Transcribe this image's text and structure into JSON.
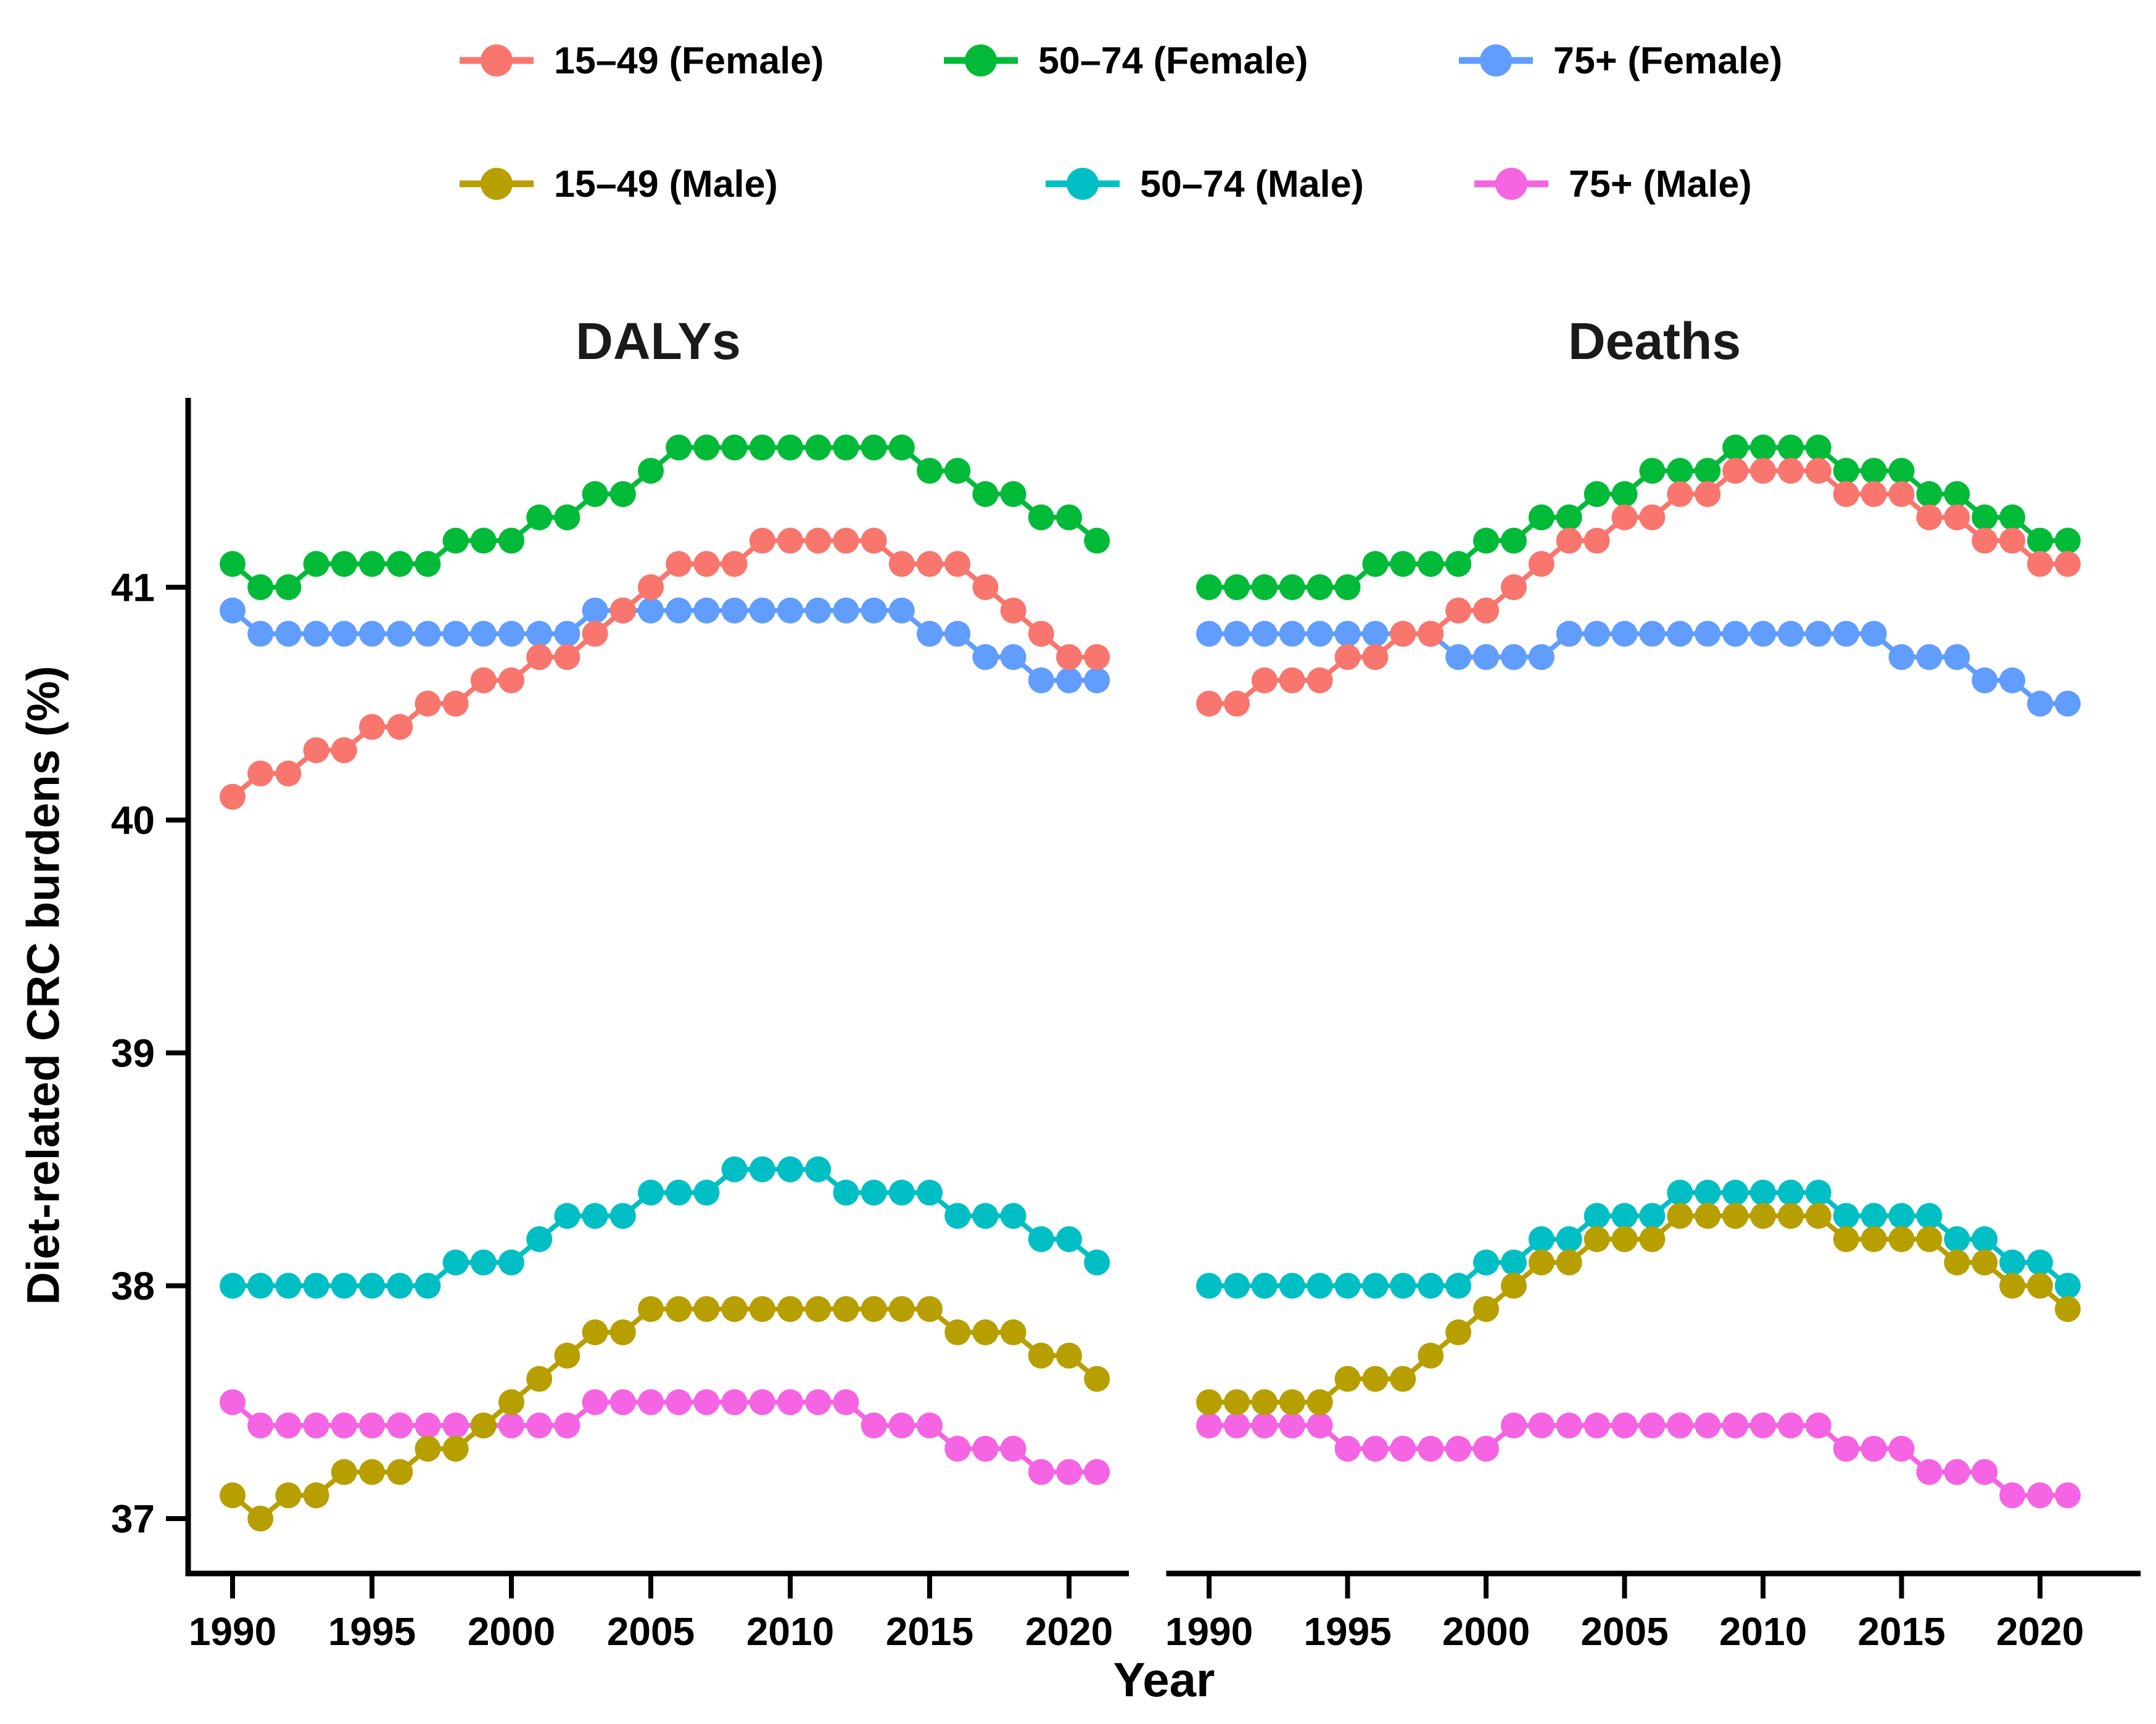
{
  "figure": {
    "background": "#ffffff",
    "text_color": "#000000"
  },
  "legend": {
    "items": [
      {
        "label": "15–49 (Female)",
        "color": "#F8766D"
      },
      {
        "label": "50–74 (Female)",
        "color": "#00BA38"
      },
      {
        "label": "75+ (Female)",
        "color": "#619CFF"
      },
      {
        "label": "15–49 (Male)",
        "color": "#B79F00"
      },
      {
        "label": "50–74 (Male)",
        "color": "#00BFC4"
      },
      {
        "label": "75+ (Male)",
        "color": "#F564E3"
      }
    ]
  },
  "chart_data": {
    "type": "line",
    "title": "",
    "xlabel": "Year",
    "ylabel": "Diet-related CRC burdens (%)",
    "x": [
      1990,
      1991,
      1992,
      1993,
      1994,
      1995,
      1996,
      1997,
      1998,
      1999,
      2000,
      2001,
      2002,
      2003,
      2004,
      2005,
      2006,
      2007,
      2008,
      2009,
      2010,
      2011,
      2012,
      2013,
      2014,
      2015,
      2016,
      2017,
      2018,
      2019,
      2020,
      2021
    ],
    "x_ticks": [
      1990,
      1995,
      2000,
      2005,
      2010,
      2015,
      2020
    ],
    "y_ticks": [
      37,
      38,
      39,
      40,
      41
    ],
    "ylim": [
      36.74,
      41.81
    ],
    "xlim": [
      1988.4,
      2022.3
    ],
    "grid": false,
    "legend_position": "top",
    "marker": "point",
    "panels": [
      {
        "title": "DALYs",
        "series": [
          {
            "name": "15–49 (Female)",
            "color": "#F8766D",
            "values": [
              40.1,
              40.2,
              40.2,
              40.3,
              40.3,
              40.4,
              40.4,
              40.5,
              40.5,
              40.6,
              40.6,
              40.7,
              40.7,
              40.8,
              40.9,
              41.0,
              41.1,
              41.1,
              41.1,
              41.2,
              41.2,
              41.2,
              41.2,
              41.2,
              41.1,
              41.1,
              41.1,
              41.0,
              40.9,
              40.8,
              40.7,
              40.7
            ]
          },
          {
            "name": "50–74 (Female)",
            "color": "#00BA38",
            "values": [
              41.1,
              41.0,
              41.0,
              41.1,
              41.1,
              41.1,
              41.1,
              41.1,
              41.2,
              41.2,
              41.2,
              41.3,
              41.3,
              41.4,
              41.4,
              41.5,
              41.6,
              41.6,
              41.6,
              41.6,
              41.6,
              41.6,
              41.6,
              41.6,
              41.6,
              41.5,
              41.5,
              41.4,
              41.4,
              41.3,
              41.3,
              41.2
            ]
          },
          {
            "name": "75+ (Female)",
            "color": "#619CFF",
            "values": [
              40.9,
              40.8,
              40.8,
              40.8,
              40.8,
              40.8,
              40.8,
              40.8,
              40.8,
              40.8,
              40.8,
              40.8,
              40.8,
              40.9,
              40.9,
              40.9,
              40.9,
              40.9,
              40.9,
              40.9,
              40.9,
              40.9,
              40.9,
              40.9,
              40.9,
              40.8,
              40.8,
              40.7,
              40.7,
              40.6,
              40.6,
              40.6
            ]
          },
          {
            "name": "15–49 (Male)",
            "color": "#B79F00",
            "values": [
              37.1,
              37.0,
              37.1,
              37.1,
              37.2,
              37.2,
              37.2,
              37.3,
              37.3,
              37.4,
              37.5,
              37.6,
              37.7,
              37.8,
              37.8,
              37.9,
              37.9,
              37.9,
              37.9,
              37.9,
              37.9,
              37.9,
              37.9,
              37.9,
              37.9,
              37.9,
              37.8,
              37.8,
              37.8,
              37.7,
              37.7,
              37.6
            ]
          },
          {
            "name": "50–74 (Male)",
            "color": "#00BFC4",
            "values": [
              38.0,
              38.0,
              38.0,
              38.0,
              38.0,
              38.0,
              38.0,
              38.0,
              38.1,
              38.1,
              38.1,
              38.2,
              38.3,
              38.3,
              38.3,
              38.4,
              38.4,
              38.4,
              38.5,
              38.5,
              38.5,
              38.5,
              38.4,
              38.4,
              38.4,
              38.4,
              38.3,
              38.3,
              38.3,
              38.2,
              38.2,
              38.1
            ]
          },
          {
            "name": "75+ (Male)",
            "color": "#F564E3",
            "values": [
              37.5,
              37.4,
              37.4,
              37.4,
              37.4,
              37.4,
              37.4,
              37.4,
              37.4,
              37.4,
              37.4,
              37.4,
              37.4,
              37.5,
              37.5,
              37.5,
              37.5,
              37.5,
              37.5,
              37.5,
              37.5,
              37.5,
              37.5,
              37.4,
              37.4,
              37.4,
              37.3,
              37.3,
              37.3,
              37.2,
              37.2,
              37.2
            ]
          }
        ]
      },
      {
        "title": "Deaths",
        "series": [
          {
            "name": "15–49 (Female)",
            "color": "#F8766D",
            "values": [
              40.5,
              40.5,
              40.6,
              40.6,
              40.6,
              40.7,
              40.7,
              40.8,
              40.8,
              40.9,
              40.9,
              41.0,
              41.1,
              41.2,
              41.2,
              41.3,
              41.3,
              41.4,
              41.4,
              41.5,
              41.5,
              41.5,
              41.5,
              41.4,
              41.4,
              41.4,
              41.3,
              41.3,
              41.2,
              41.2,
              41.1,
              41.1
            ]
          },
          {
            "name": "50–74 (Female)",
            "color": "#00BA38",
            "values": [
              41.0,
              41.0,
              41.0,
              41.0,
              41.0,
              41.0,
              41.1,
              41.1,
              41.1,
              41.1,
              41.2,
              41.2,
              41.3,
              41.3,
              41.4,
              41.4,
              41.5,
              41.5,
              41.5,
              41.6,
              41.6,
              41.6,
              41.6,
              41.5,
              41.5,
              41.5,
              41.4,
              41.4,
              41.3,
              41.3,
              41.2,
              41.2
            ]
          },
          {
            "name": "75+ (Female)",
            "color": "#619CFF",
            "values": [
              40.8,
              40.8,
              40.8,
              40.8,
              40.8,
              40.8,
              40.8,
              40.8,
              40.8,
              40.7,
              40.7,
              40.7,
              40.7,
              40.8,
              40.8,
              40.8,
              40.8,
              40.8,
              40.8,
              40.8,
              40.8,
              40.8,
              40.8,
              40.8,
              40.8,
              40.7,
              40.7,
              40.7,
              40.6,
              40.6,
              40.5,
              40.5
            ]
          },
          {
            "name": "15–49 (Male)",
            "color": "#B79F00",
            "values": [
              37.5,
              37.5,
              37.5,
              37.5,
              37.5,
              37.6,
              37.6,
              37.6,
              37.7,
              37.8,
              37.9,
              38.0,
              38.1,
              38.1,
              38.2,
              38.2,
              38.2,
              38.3,
              38.3,
              38.3,
              38.3,
              38.3,
              38.3,
              38.2,
              38.2,
              38.2,
              38.2,
              38.1,
              38.1,
              38.0,
              38.0,
              37.9
            ]
          },
          {
            "name": "50–74 (Male)",
            "color": "#00BFC4",
            "values": [
              38.0,
              38.0,
              38.0,
              38.0,
              38.0,
              38.0,
              38.0,
              38.0,
              38.0,
              38.0,
              38.1,
              38.1,
              38.2,
              38.2,
              38.3,
              38.3,
              38.3,
              38.4,
              38.4,
              38.4,
              38.4,
              38.4,
              38.4,
              38.3,
              38.3,
              38.3,
              38.3,
              38.2,
              38.2,
              38.1,
              38.1,
              38.0
            ]
          },
          {
            "name": "75+ (Male)",
            "color": "#F564E3",
            "values": [
              37.4,
              37.4,
              37.4,
              37.4,
              37.4,
              37.3,
              37.3,
              37.3,
              37.3,
              37.3,
              37.3,
              37.4,
              37.4,
              37.4,
              37.4,
              37.4,
              37.4,
              37.4,
              37.4,
              37.4,
              37.4,
              37.4,
              37.4,
              37.3,
              37.3,
              37.3,
              37.2,
              37.2,
              37.2,
              37.1,
              37.1,
              37.1
            ]
          }
        ]
      }
    ]
  }
}
